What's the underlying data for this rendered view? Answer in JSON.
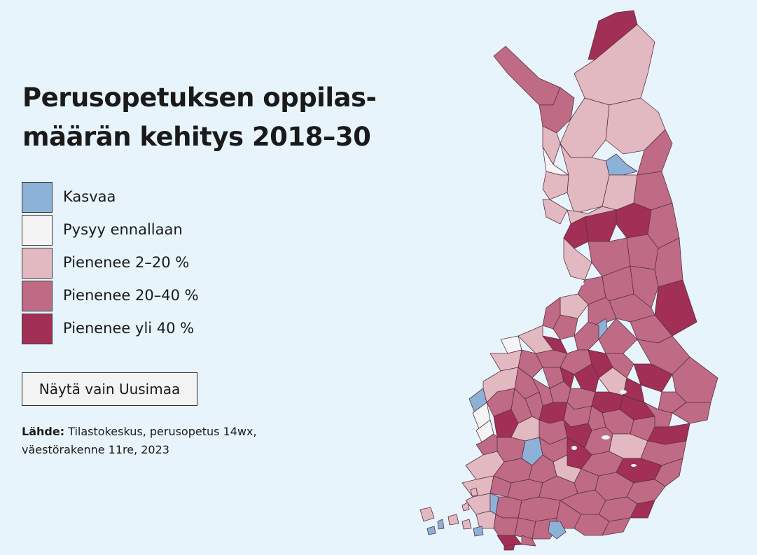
{
  "title_line1": "Perusopetuksen oppilas-",
  "title_line2": "määrän kehitys 2018–30",
  "legend": [
    {
      "label": "Kasvaa",
      "color": "#8db2d8"
    },
    {
      "label": "Pysyy ennallaan",
      "color": "#f4f4f4"
    },
    {
      "label": "Pienenee 2–20 %",
      "color": "#e2b9c1"
    },
    {
      "label": "Pienenee 20–40 %",
      "color": "#bf6b86"
    },
    {
      "label": "Pienenee yli 40 %",
      "color": "#a22f56"
    }
  ],
  "button_label": "Näytä vain Uusimaa",
  "source_label": "Lähde:",
  "source_text": "Tilastokeskus, perusopetus 14wx, väestörakenne 11re, 2023"
}
